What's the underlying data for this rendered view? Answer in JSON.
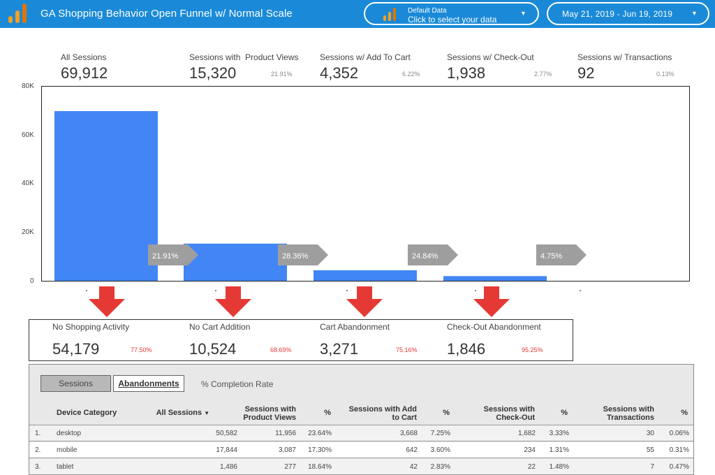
{
  "header": {
    "title": "GA Shopping Behavior Open Funnel w/ Normal Scale",
    "data_source": {
      "line1": "Default Data",
      "line2": "Click to select your data",
      "caret": "▼"
    },
    "date_range": {
      "label": "May 21, 2019 - Jun 19, 2019",
      "caret": "▼"
    },
    "colors": {
      "bar": "#ffffff",
      "logo_orange": "#f4a020",
      "logo_dark": "#e37400"
    }
  },
  "kpis": [
    {
      "label": "All Sessions",
      "value": "69,912",
      "pct": ""
    },
    {
      "label": "Sessions with  Product Views",
      "value": "15,320",
      "pct": "21.91%"
    },
    {
      "label": "Sessions w/ Add To Cart",
      "value": "4,352",
      "pct": "6.22%"
    },
    {
      "label": "Sessions w/ Check-Out",
      "value": "1,938",
      "pct": "2.77%"
    },
    {
      "label": "Sessions w/ Transactions",
      "value": "92",
      "pct": "0.13%"
    }
  ],
  "chart_data": {
    "type": "bar",
    "categories": [
      "All Sessions",
      "Sessions with Product Views",
      "Sessions w/ Add To Cart",
      "Sessions w/ Check-Out",
      "Sessions w/ Transactions"
    ],
    "values": [
      69912,
      15320,
      4352,
      1938,
      92
    ],
    "ylim": [
      0,
      80000
    ],
    "y_ticks": [
      "0",
      "20K",
      "40K",
      "60K",
      "80K"
    ],
    "step_rates": [
      "21.91%",
      "28.36%",
      "24.84%",
      "4.75%"
    ],
    "bar_color": "#4285f4",
    "arrow_color": "#9e9e9e"
  },
  "abandonments": [
    {
      "label": "No Shopping Activity",
      "value": "54,179",
      "pct": "77.50%"
    },
    {
      "label": "No Cart Addition",
      "value": "10,524",
      "pct": "68.69%"
    },
    {
      "label": "Cart Abandonment",
      "value": "3,271",
      "pct": "75.16%"
    },
    {
      "label": "Check-Out Abandonment",
      "value": "1,846",
      "pct": "95.25%"
    }
  ],
  "down_arrow_color": "#e53935",
  "table": {
    "tabs": {
      "sessions": "Sessions",
      "abandonments": "Abandonments",
      "completion": "% Completion Rate"
    },
    "columns": [
      {
        "l1": "Device Category",
        "l2": ""
      },
      {
        "l1": "All Sessions",
        "l2": "",
        "sort": "▼"
      },
      {
        "l1": "Sessions with",
        "l2": "Product Views"
      },
      {
        "l1": "%",
        "l2": ""
      },
      {
        "l1": "Sessions with Add",
        "l2": "to Cart"
      },
      {
        "l1": "%",
        "l2": ""
      },
      {
        "l1": "Sessions with",
        "l2": "Check-Out"
      },
      {
        "l1": "%",
        "l2": ""
      },
      {
        "l1": "Sessions with",
        "l2": "Transactions"
      },
      {
        "l1": "%",
        "l2": ""
      }
    ],
    "rows": [
      {
        "n": "1.",
        "device": "desktop",
        "all": "50,582",
        "pv": "11,956",
        "pv_pct": "23.64%",
        "atc": "3,668",
        "atc_pct": "7.25%",
        "co": "1,682",
        "co_pct": "3.33%",
        "tx": "30",
        "tx_pct": "0.06%"
      },
      {
        "n": "2.",
        "device": "mobile",
        "all": "17,844",
        "pv": "3,087",
        "pv_pct": "17.30%",
        "atc": "642",
        "atc_pct": "3.60%",
        "co": "234",
        "co_pct": "1.31%",
        "tx": "55",
        "tx_pct": "0.31%"
      },
      {
        "n": "3.",
        "device": "tablet",
        "all": "1,486",
        "pv": "277",
        "pv_pct": "18.64%",
        "atc": "42",
        "atc_pct": "2.83%",
        "co": "22",
        "co_pct": "1.48%",
        "tx": "7",
        "tx_pct": "0.47%"
      }
    ]
  }
}
